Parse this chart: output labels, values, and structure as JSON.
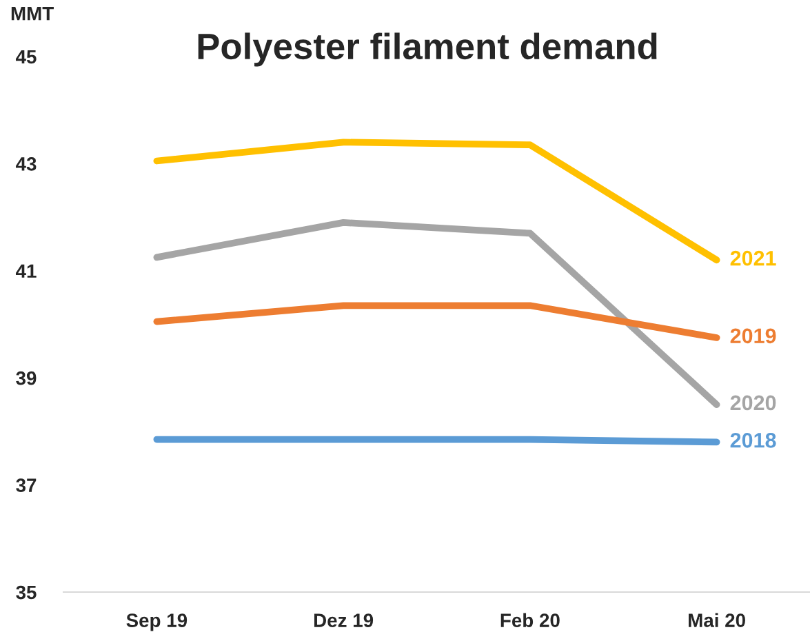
{
  "chart_data": {
    "type": "line",
    "title": "Polyester filament demand",
    "ylabel": "MMT",
    "categories": [
      "Sep 19",
      "Dez 19",
      "Feb 20",
      "Mai 20"
    ],
    "series": [
      {
        "name": "2021",
        "color": "#ffc000",
        "values": [
          43.05,
          43.4,
          43.35,
          41.2
        ]
      },
      {
        "name": "2020",
        "color": "#a5a5a5",
        "values": [
          41.25,
          41.9,
          41.7,
          38.5
        ]
      },
      {
        "name": "2019",
        "color": "#ed7d31",
        "values": [
          40.05,
          40.35,
          40.35,
          39.75
        ]
      },
      {
        "name": "2018",
        "color": "#5b9bd5",
        "values": [
          37.85,
          37.85,
          37.85,
          37.8
        ]
      }
    ],
    "ylim": [
      35,
      45
    ],
    "yticks": [
      35,
      37,
      39,
      41,
      43,
      45
    ],
    "grid": false,
    "legend": false,
    "marker": "none",
    "line_style": "solid"
  }
}
